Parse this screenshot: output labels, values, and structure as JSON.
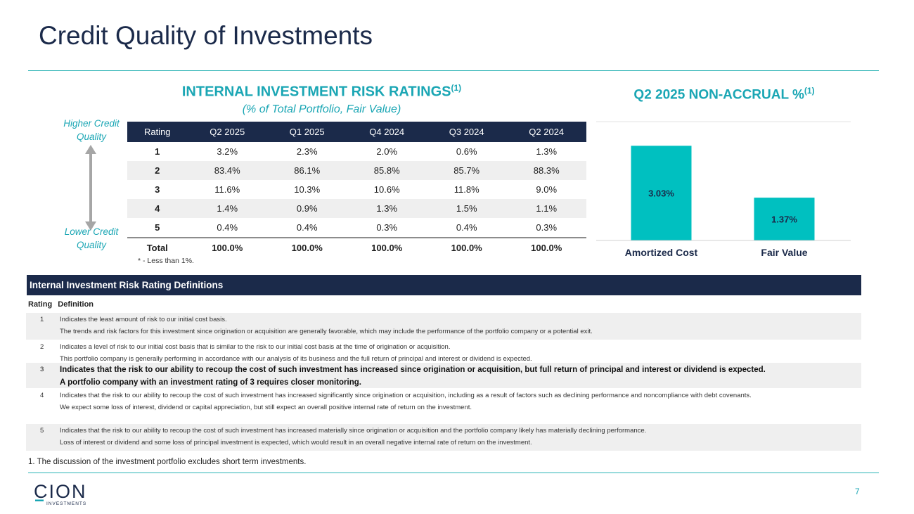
{
  "title": "Credit Quality of Investments",
  "risk_ratings": {
    "title": "INTERNAL INVESTMENT RISK RATINGS",
    "title_sup": "(1)",
    "subtitle": "(% of Total Portfolio, Fair Value)",
    "higher_label": [
      "Higher Credit",
      "Quality"
    ],
    "lower_label": [
      "Lower Credit",
      "Quality"
    ],
    "columns": [
      "Rating",
      "Q2 2025",
      "Q1 2025",
      "Q4 2024",
      "Q3 2024",
      "Q2 2024"
    ],
    "rows": [
      [
        "1",
        "3.2%",
        "2.3%",
        "2.0%",
        "0.6%",
        "1.3%"
      ],
      [
        "2",
        "83.4%",
        "86.1%",
        "85.8%",
        "85.7%",
        "88.3%"
      ],
      [
        "3",
        "11.6%",
        "10.3%",
        "10.6%",
        "11.8%",
        "9.0%"
      ],
      [
        "4",
        "1.4%",
        "0.9%",
        "1.3%",
        "1.5%",
        "1.1%"
      ],
      [
        "5",
        "0.4%",
        "0.4%",
        "0.3%",
        "0.4%",
        "0.3%"
      ]
    ],
    "total": [
      "Total",
      "100.0%",
      "100.0%",
      "100.0%",
      "100.0%",
      "100.0%"
    ],
    "footnote": "* - Less than 1%."
  },
  "non_accrual": {
    "title": "Q2 2025 NON-ACCRUAL %",
    "title_sup": "(1)"
  },
  "chart_data": {
    "type": "bar",
    "categories": [
      "Amortized Cost",
      "Fair Value"
    ],
    "values": [
      3.03,
      1.37
    ],
    "data_labels": [
      "3.03%",
      "1.37%"
    ],
    "title": "Q2 2025 NON-ACCRUAL %",
    "ylim": [
      0,
      3.6
    ],
    "grid": false,
    "bar_color": "#00c0c0"
  },
  "definitions": {
    "header": "Internal Investment Risk Rating Definitions",
    "col_rating": "Rating",
    "col_definition": "Definition",
    "rows": [
      {
        "rating": "1",
        "lines": [
          "Indicates the least amount of risk to our initial cost basis.",
          "The trends and risk factors for this investment since origination or acquisition are generally favorable, which may include the performance of the portfolio company or a potential exit."
        ]
      },
      {
        "rating": "2",
        "lines": [
          "Indicates a level of risk to our initial cost basis that is similar to the risk to our initial cost basis at the time of origination or acquisition.",
          "This portfolio company is generally performing in accordance with our analysis of its business and the full return of principal and interest or dividend is expected."
        ]
      },
      {
        "rating": "3",
        "lines": [
          "Indicates that the risk to our ability to recoup the cost of such investment has increased since origination or acquisition, but full return of principal and interest or dividend is expected.",
          "A portfolio company with an investment rating of 3 requires closer monitoring."
        ]
      },
      {
        "rating": "4",
        "lines": [
          "Indicates that the risk to our ability to recoup the cost of such investment has increased significantly since origination or acquisition, including as a result of factors such as declining performance and noncompliance with debt covenants.",
          "We expect some loss of interest, dividend or capital appreciation, but still expect an overall positive internal rate of return on the investment."
        ]
      },
      {
        "rating": "5",
        "lines": [
          "Indicates that the risk to our ability to recoup the cost of such investment has increased materially since origination or acquisition and the portfolio company likely has materially declining performance.",
          "Loss of interest or dividend and some loss of principal investment is expected, which would result in an overall negative internal rate of return on the investment."
        ]
      }
    ]
  },
  "note": "1.   The discussion of the investment portfolio excludes short term investments.",
  "page_number": "7",
  "logo": {
    "text": "CION",
    "subtext": "INVESTMENTS"
  },
  "colors": {
    "navy": "#1b2a4a",
    "teal": "#1aa6b4",
    "bar": "#00c0c0"
  }
}
